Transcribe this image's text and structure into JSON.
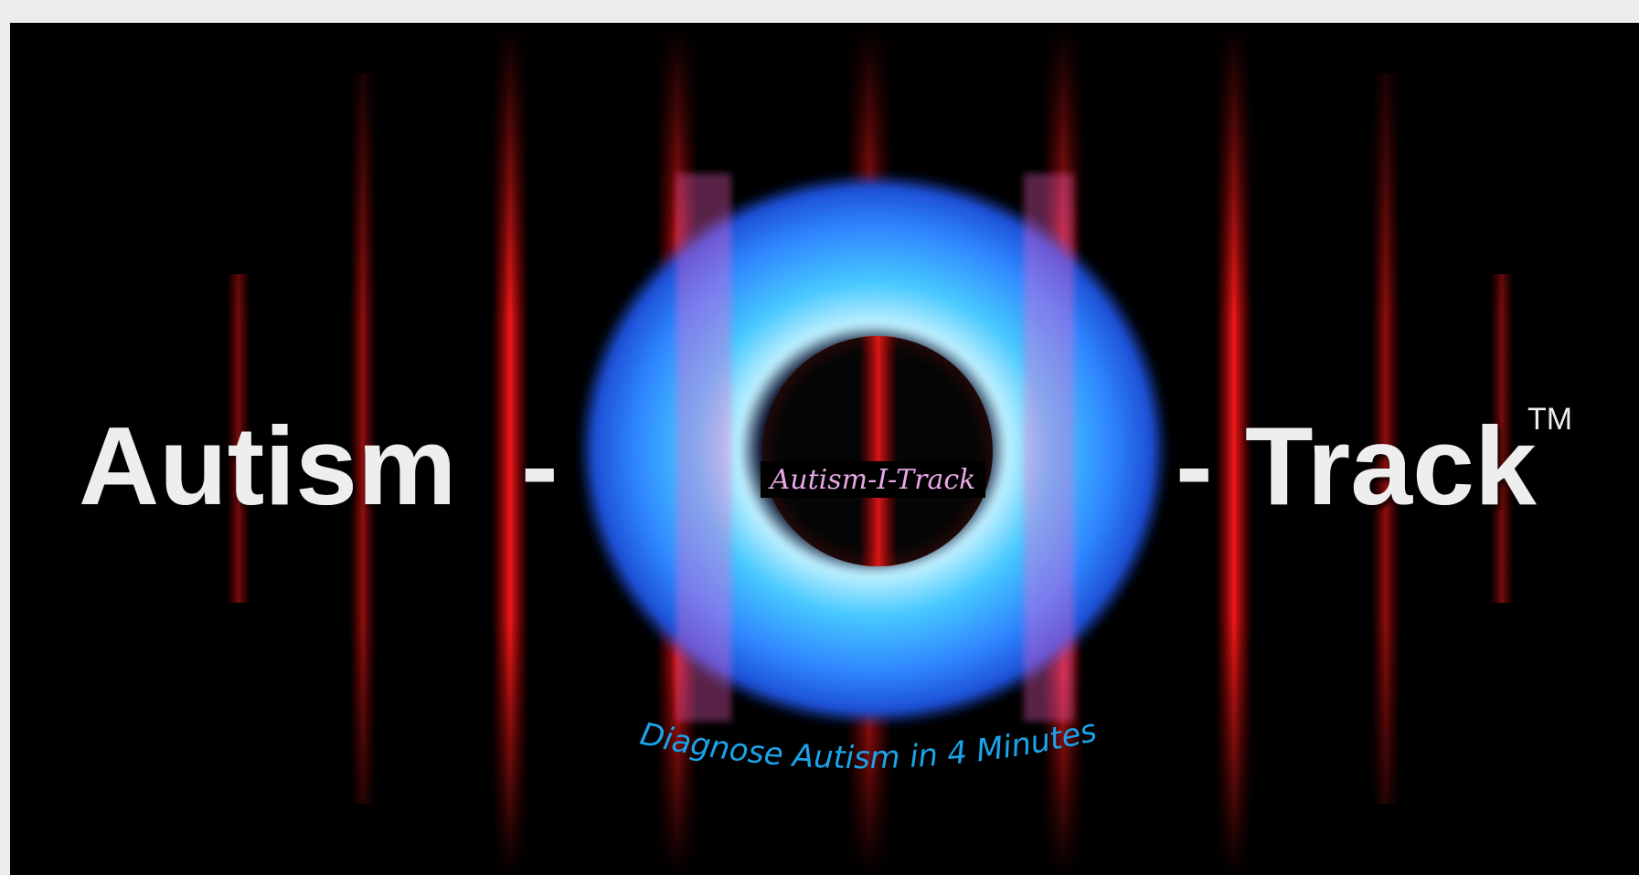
{
  "banner": {
    "title_left": "Autism",
    "dash_left": "-",
    "dash_right": "-",
    "title_right": "Track",
    "trademark": "TM",
    "badge": "Autism-I-Track",
    "tagline": "Diagnose Autism in 4 Minutes"
  }
}
